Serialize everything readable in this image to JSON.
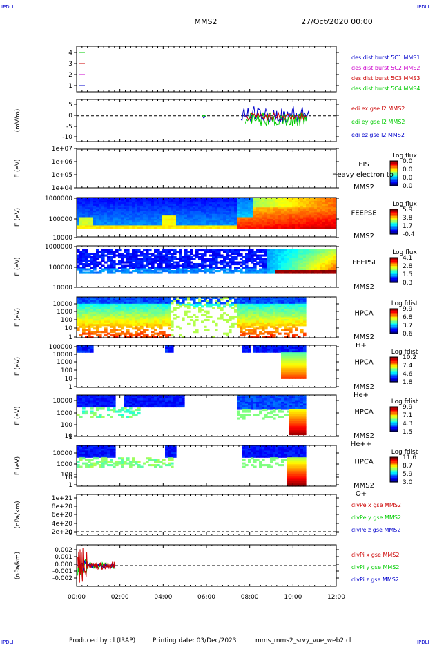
{
  "header": {
    "corner_tl": "IPDLI",
    "corner_tr": "IPDLI",
    "corner_bl": "IPDLI",
    "corner_br": "IPDLI",
    "spacecraft": "MMS2",
    "date": "27/Oct/2020 00:00"
  },
  "footer": {
    "produced_by": "Produced by cl (IRAP)",
    "printing_date": "Printing date: 03/Dec/2023",
    "filename": "mms_mms2_srvy_vue_web2.cl"
  },
  "colors": {
    "panel_border": "#000000",
    "label_blue": "#0000cc",
    "label_red": "#cc0000",
    "label_green": "#00cc00",
    "label_magenta": "#cc00cc"
  },
  "chart_data": [
    {
      "type": "line",
      "panel": "burst",
      "yticks": [
        "1",
        "2",
        "3",
        "4"
      ],
      "ylim": [
        0.5,
        4.5
      ],
      "series": [
        {
          "name": "des dist burst 5C1 MMS1",
          "color": "#0000cc",
          "level": 1
        },
        {
          "name": "des dist burst 5C2 MMS2",
          "color": "#cc00cc",
          "level": 2
        },
        {
          "name": "des dist burst 5C3 MMS3",
          "color": "#cc0000",
          "level": 3
        },
        {
          "name": "des dist burst 5C4 MMS4",
          "color": "#00cc00",
          "level": 4
        }
      ]
    },
    {
      "type": "line",
      "panel": "edi",
      "ylabel": "(mV/m)",
      "yticks": [
        "5",
        "0",
        "-5",
        "-10"
      ],
      "ylim": [
        -11,
        7
      ],
      "xlim": [
        0,
        12
      ],
      "series": [
        {
          "name": "edi ex gse l2 MMS2",
          "color": "#cc0000"
        },
        {
          "name": "edi ey gse l2 MMS2",
          "color": "#00cc00"
        },
        {
          "name": "edi ez gse l2 MMS2",
          "color": "#0000cc"
        }
      ]
    },
    {
      "type": "heatmap",
      "panel": "eis",
      "ylabel": "E (eV)",
      "yticks": [
        "1e+07",
        "1e+06",
        "1e+05",
        "1e+04"
      ],
      "labels": [
        "EIS",
        "MMS2"
      ],
      "overlay_text": "Heavy electron to",
      "colorbar": {
        "title": "Log flux",
        "ticks": [
          "0.0",
          "0.0",
          "0.0",
          "0.0"
        ]
      }
    },
    {
      "type": "heatmap",
      "panel": "feepse",
      "ylabel": "E (eV)",
      "yticks": [
        "1000000",
        "100000",
        "10000"
      ],
      "labels": [
        "FEEPSE",
        "MMS2"
      ],
      "colorbar": {
        "title": "Log flux",
        "ticks": [
          "5.9",
          "3.8",
          "1.7",
          "-0.4"
        ]
      }
    },
    {
      "type": "heatmap",
      "panel": "feepsi",
      "ylabel": "E (eV)",
      "yticks": [
        "1000000",
        "100000",
        "10000"
      ],
      "labels": [
        "FEEPSI",
        "MMS2"
      ],
      "colorbar": {
        "title": "Log flux",
        "ticks": [
          "4.1",
          "2.8",
          "1.5",
          "0.3"
        ]
      }
    },
    {
      "type": "heatmap",
      "panel": "hpca_h",
      "ylabel": "E (eV)",
      "yticks": [
        "10000",
        "1000",
        "100",
        "10",
        "1"
      ],
      "labels": [
        "HPCA",
        "MMS2",
        "H+"
      ],
      "colorbar": {
        "title": "Log fdist",
        "ticks": [
          "9.9",
          "6.8",
          "3.7",
          "0.6"
        ]
      }
    },
    {
      "type": "heatmap",
      "panel": "hpca_he1",
      "ylabel": "E (eV)",
      "yticks": [
        "100000",
        "10000",
        "1000",
        "100",
        "10",
        "1"
      ],
      "labels": [
        "HPCA",
        "MMS2",
        "He+"
      ],
      "colorbar": {
        "title": "Log fdist",
        "ticks": [
          "10.2",
          "7.4",
          "4.6",
          "1.8"
        ]
      }
    },
    {
      "type": "heatmap",
      "panel": "hpca_he2",
      "ylabel": "E (eV)",
      "yticks": [
        "10000",
        "1000",
        "100",
        "10",
        "1"
      ],
      "labels": [
        "HPCA",
        "MMS2",
        "He++"
      ],
      "colorbar": {
        "title": "Log fdist",
        "ticks": [
          "9.9",
          "7.1",
          "4.3",
          "1.5"
        ]
      }
    },
    {
      "type": "heatmap",
      "panel": "hpca_o",
      "ylabel": "E (eV)",
      "yticks": [
        "10000",
        "1000",
        "100",
        "10",
        "1"
      ],
      "labels": [
        "HPCA",
        "MMS2",
        "O+"
      ],
      "colorbar": {
        "title": "Log fdist",
        "ticks": [
          "11.6",
          "8.7",
          "5.9",
          "3.0"
        ]
      }
    },
    {
      "type": "line",
      "panel": "divpe",
      "ylabel": "(nPa/km)",
      "yticks": [
        "1e+21",
        "8e+20",
        "6e+20",
        "4e+20",
        "2e+20",
        "0"
      ],
      "ylim": [
        0,
        1e+21
      ],
      "series": [
        {
          "name": "divPe x gse MMS2",
          "color": "#cc0000"
        },
        {
          "name": "divPe y gse MMS2",
          "color": "#00cc00"
        },
        {
          "name": "divPe z gse MMS2",
          "color": "#0000cc"
        }
      ]
    },
    {
      "type": "line",
      "panel": "divpi",
      "ylabel": "(nPa/km)",
      "yticks": [
        "0.002",
        "0.001",
        "0.000",
        "-0.001",
        "-0.002"
      ],
      "ylim": [
        -0.0028,
        0.0028
      ],
      "xlim": [
        0,
        12
      ],
      "series": [
        {
          "name": "divPi x gse MMS2",
          "color": "#cc0000"
        },
        {
          "name": "divPi y gse MMS2",
          "color": "#00cc00"
        },
        {
          "name": "divPi z gse MMS2",
          "color": "#0000cc"
        }
      ]
    }
  ],
  "xaxis": {
    "ticks": [
      "00:00",
      "02:00",
      "04:00",
      "06:00",
      "08:00",
      "10:00",
      "12:00"
    ],
    "xlim": [
      0,
      12
    ]
  }
}
